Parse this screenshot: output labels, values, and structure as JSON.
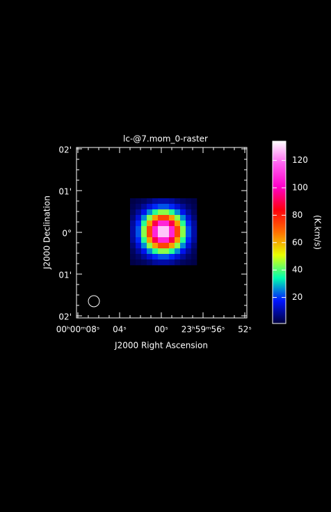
{
  "chart_data": {
    "type": "heatmap",
    "title": "lc-@7.mom_0-raster",
    "x_label": "J2000 Right Ascension",
    "y_label": "J2000 Declination",
    "x_tick_labels": [
      "00ʰ00ᵐ08ˢ",
      "04ˢ",
      "00ˢ",
      "23ʰ59ᵐ56ˢ",
      "52ˢ"
    ],
    "y_tick_labels": [
      "02'",
      "01'",
      "0°",
      "01'",
      "02'"
    ],
    "z": [
      [
        2,
        3,
        4,
        6,
        9,
        10,
        10,
        9,
        6,
        4,
        3,
        2
      ],
      [
        3,
        5,
        9,
        14,
        19,
        22,
        22,
        19,
        14,
        9,
        5,
        3
      ],
      [
        4,
        9,
        16,
        26,
        37,
        44,
        44,
        37,
        26,
        16,
        9,
        4
      ],
      [
        6,
        14,
        26,
        44,
        62,
        74,
        74,
        62,
        44,
        26,
        14,
        6
      ],
      [
        9,
        19,
        37,
        62,
        89,
        107,
        107,
        89,
        62,
        37,
        19,
        9
      ],
      [
        10,
        22,
        44,
        74,
        107,
        128,
        128,
        107,
        74,
        44,
        22,
        10
      ],
      [
        10,
        22,
        44,
        74,
        107,
        128,
        128,
        107,
        74,
        44,
        22,
        10
      ],
      [
        9,
        19,
        37,
        62,
        89,
        107,
        107,
        89,
        62,
        37,
        19,
        9
      ],
      [
        6,
        14,
        26,
        44,
        62,
        74,
        74,
        62,
        44,
        26,
        14,
        6
      ],
      [
        4,
        9,
        16,
        26,
        37,
        44,
        44,
        37,
        26,
        16,
        9,
        4
      ],
      [
        3,
        5,
        9,
        14,
        19,
        22,
        22,
        19,
        14,
        9,
        5,
        3
      ],
      [
        2,
        3,
        4,
        6,
        9,
        10,
        10,
        9,
        6,
        4,
        3,
        2
      ]
    ],
    "zlim": [
      1,
      134
    ],
    "zticks": [
      20,
      40,
      60,
      80,
      100,
      120
    ],
    "colorbar_label": "(K.km/s)",
    "colormap": [
      "#00003c",
      "#0014ff",
      "#00ffb0",
      "#e8ff00",
      "#ff7000",
      "#ff0010",
      "#ff00c8",
      "#ff60f0",
      "#ffffff"
    ]
  }
}
